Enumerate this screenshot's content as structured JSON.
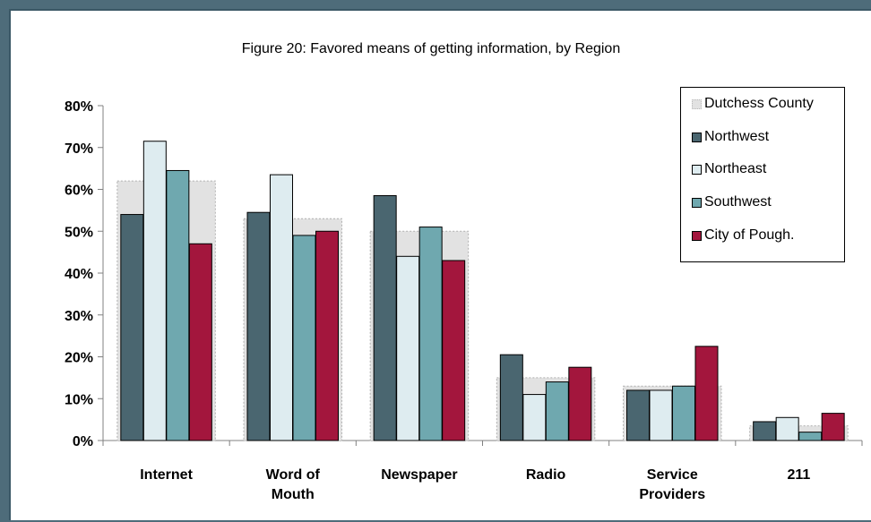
{
  "chart_data": {
    "type": "bar",
    "title": "Figure 20:  Favored means of getting information, by Region",
    "categories": [
      [
        "Internet"
      ],
      [
        "Word of",
        "Mouth"
      ],
      [
        "Newspaper"
      ],
      [
        "Radio"
      ],
      [
        "Service",
        "Providers"
      ],
      [
        "211"
      ]
    ],
    "ylim": [
      0,
      80
    ],
    "yticks": [
      0,
      10,
      20,
      30,
      40,
      50,
      60,
      70,
      80
    ],
    "ytick_labels": [
      "0%",
      "10%",
      "20%",
      "30%",
      "40%",
      "50%",
      "60%",
      "70%",
      "80%"
    ],
    "grid": false,
    "legend_position": "top-right",
    "background_series": {
      "name": "Dutchess County",
      "values": [
        62,
        53,
        50,
        15,
        13,
        3.5
      ],
      "color": "#e2e2e2"
    },
    "series": [
      {
        "name": "Northwest",
        "values": [
          54,
          54.5,
          58.5,
          20.5,
          12,
          4.5
        ],
        "color": "#4a6670"
      },
      {
        "name": "Northeast",
        "values": [
          71.5,
          63.5,
          44,
          11,
          12,
          5.5
        ],
        "color": "#deecf0"
      },
      {
        "name": "Southwest",
        "values": [
          64.5,
          49,
          51,
          14,
          13,
          2
        ],
        "color": "#6fa8af"
      },
      {
        "name": "City of Pough.",
        "values": [
          47,
          50,
          43,
          17.5,
          22.5,
          6.5
        ],
        "color": "#a3163d"
      }
    ]
  }
}
